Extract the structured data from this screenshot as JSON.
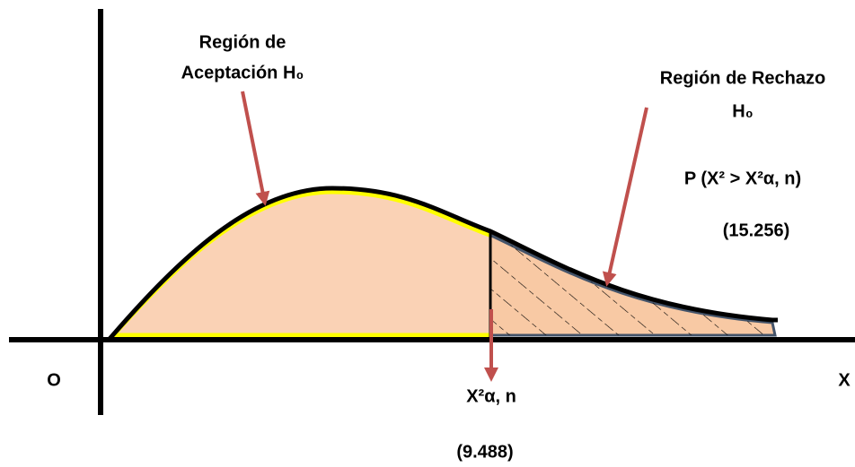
{
  "labels": {
    "acceptance": [
      "Región de",
      "Aceptación H₀"
    ],
    "rejection": [
      "Región de Rechazo",
      "H₀"
    ],
    "probability": "P (X² > X²α, n)",
    "rejection_value": "(15.256)",
    "origin": "O",
    "x_axis": "X",
    "critical": "X²α, n",
    "critical_value": "(9.488)"
  }
}
